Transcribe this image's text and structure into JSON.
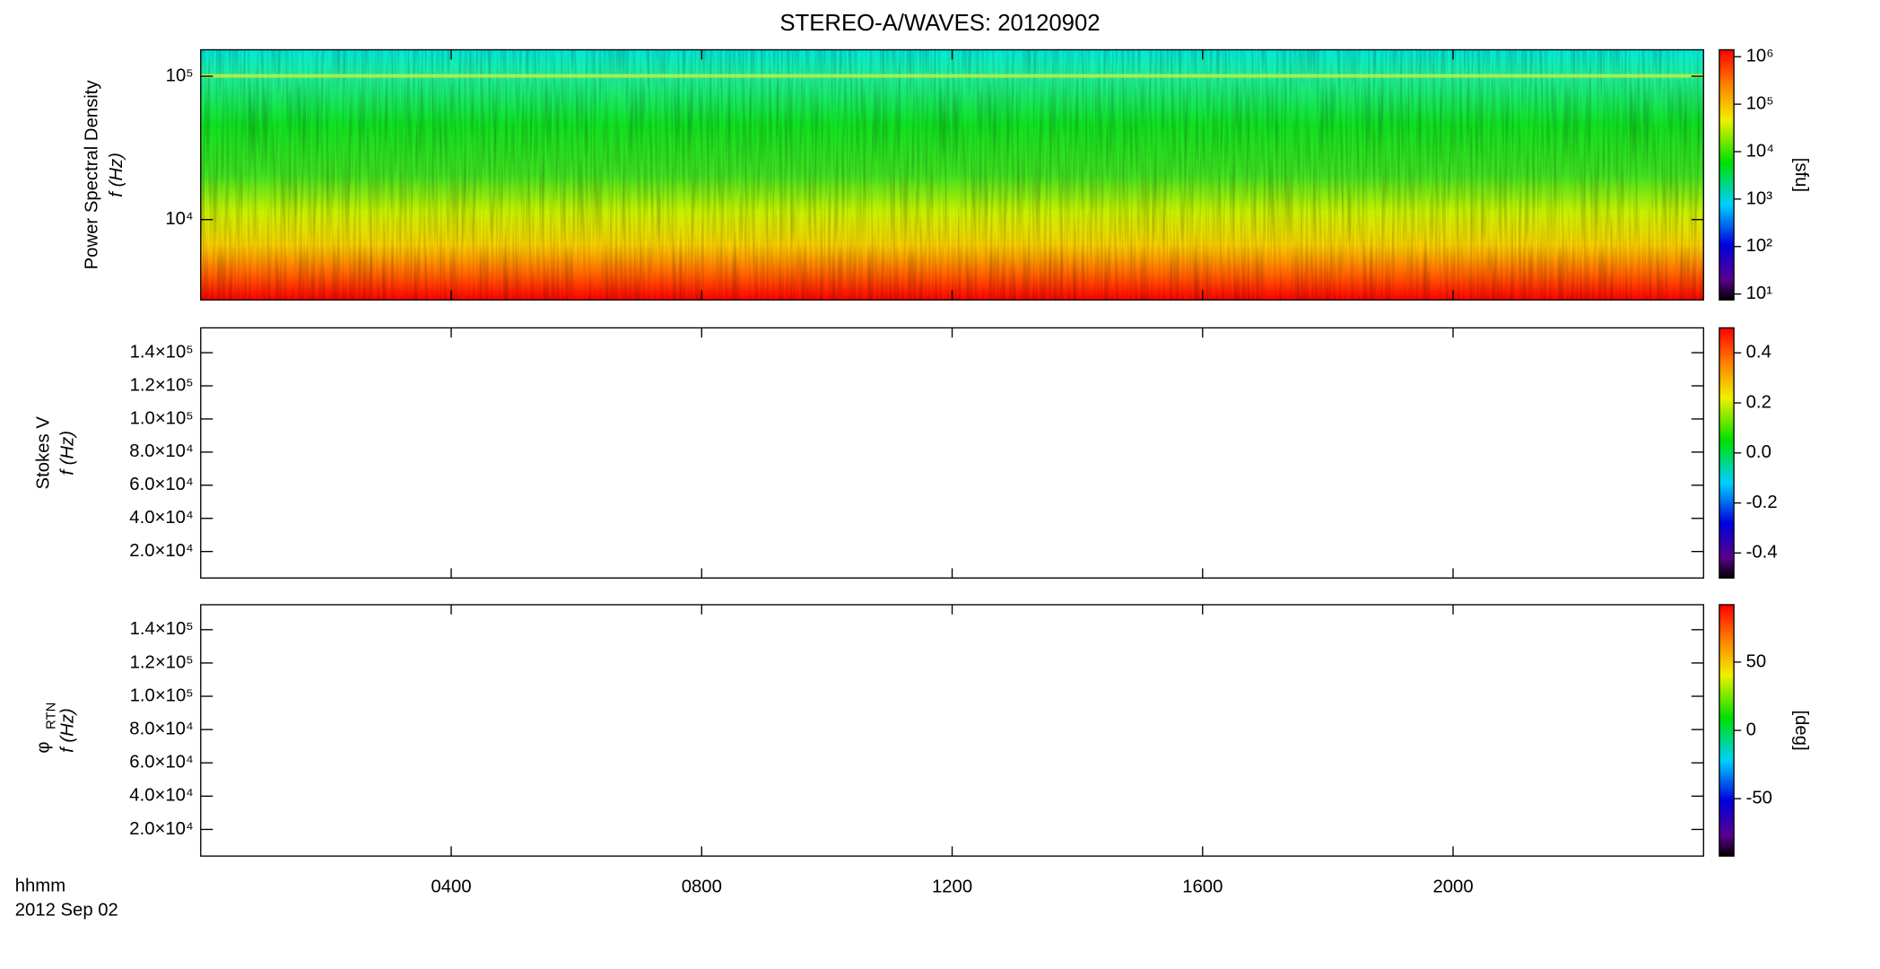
{
  "title": "STEREO-A/WAVES: 20120902",
  "x_axis": {
    "label": "hhmm",
    "date": "2012 Sep 02",
    "xlim": [
      0,
      24
    ],
    "xticks": [
      {
        "value": 4,
        "label": "0400"
      },
      {
        "value": 8,
        "label": "0800"
      },
      {
        "value": 12,
        "label": "1200"
      },
      {
        "value": 16,
        "label": "1600"
      },
      {
        "value": 20,
        "label": "2000"
      }
    ]
  },
  "chart_data": [
    {
      "type": "spectrogram",
      "ylabel": "Power Spectral Density",
      "ylabel2": "f (Hz)",
      "log": true,
      "ylim": [
        2750,
        153000
      ],
      "yticks": [
        {
          "value": 10000,
          "label": "10⁴"
        },
        {
          "value": 100000,
          "label": "10⁵"
        }
      ],
      "colorbar": {
        "label": "[sfu]",
        "log": true,
        "lim": [
          7.5,
          1400000
        ],
        "ticks": [
          {
            "value": 10,
            "label": "10¹"
          },
          {
            "value": 100,
            "label": "10²"
          },
          {
            "value": 1000,
            "label": "10³"
          },
          {
            "value": 10000,
            "label": "10⁴"
          },
          {
            "value": 100000,
            "label": "10⁵"
          },
          {
            "value": 1000000,
            "label": "10⁶"
          }
        ]
      }
    },
    {
      "type": "empty",
      "ylabel": "Stokes V",
      "ylabel2": "f (Hz)",
      "log": false,
      "ylim": [
        4000,
        155000
      ],
      "yticks": [
        {
          "value": 20000,
          "label": "2.0×10⁴"
        },
        {
          "value": 40000,
          "label": "4.0×10⁴"
        },
        {
          "value": 60000,
          "label": "6.0×10⁴"
        },
        {
          "value": 80000,
          "label": "8.0×10⁴"
        },
        {
          "value": 100000,
          "label": "1.0×10⁵"
        },
        {
          "value": 120000,
          "label": "1.2×10⁵"
        },
        {
          "value": 140000,
          "label": "1.4×10⁵"
        }
      ],
      "colorbar": {
        "log": false,
        "lim": [
          -0.5,
          0.5
        ],
        "ticks": [
          {
            "value": -0.4,
            "label": "-0.4"
          },
          {
            "value": -0.2,
            "label": "-0.2"
          },
          {
            "value": 0,
            "label": "0.0"
          },
          {
            "value": 0.2,
            "label": "0.2"
          },
          {
            "value": 0.4,
            "label": "0.4"
          }
        ]
      }
    },
    {
      "type": "empty",
      "ylabel": "φ",
      "ylabel_sub": "RTN",
      "ylabel2": "f (Hz)",
      "log": false,
      "ylim": [
        4000,
        155000
      ],
      "yticks": [
        {
          "value": 20000,
          "label": "2.0×10⁴"
        },
        {
          "value": 40000,
          "label": "4.0×10⁴"
        },
        {
          "value": 60000,
          "label": "6.0×10⁴"
        },
        {
          "value": 80000,
          "label": "8.0×10⁴"
        },
        {
          "value": 100000,
          "label": "1.0×10⁵"
        },
        {
          "value": 120000,
          "label": "1.2×10⁵"
        },
        {
          "value": 140000,
          "label": "1.4×10⁵"
        }
      ],
      "colorbar": {
        "label": "[deg]",
        "log": false,
        "lim": [
          -92,
          92
        ],
        "ticks": [
          -50,
          0,
          50
        ]
      }
    }
  ]
}
